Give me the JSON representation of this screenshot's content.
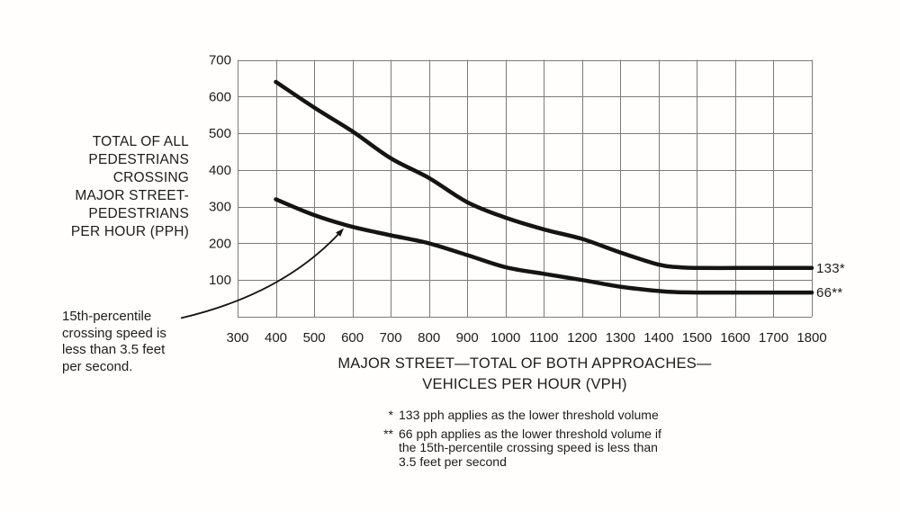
{
  "colors": {
    "background": "#fffefc",
    "grid": "#7b7b7b",
    "curve": "#141414",
    "text": "#1c1c1c"
  },
  "y_axis_title_lines": [
    "TOTAL OF ALL",
    "PEDESTRIANS",
    "CROSSING",
    "MAJOR STREET-",
    "PEDESTRIANS",
    "PER HOUR (PPH)"
  ],
  "x_axis_title_lines": [
    "MAJOR STREET—TOTAL OF BOTH APPROACHES—",
    "VEHICLES PER HOUR (VPH)"
  ],
  "annotation_lines": [
    "15th-percentile",
    "crossing speed is",
    "less than 3.5 feet",
    "per second."
  ],
  "curve_labels": {
    "upper": "133*",
    "lower": "66**"
  },
  "footnotes": [
    {
      "marker": "*",
      "lines": [
        "133 pph applies as the lower threshold volume"
      ]
    },
    {
      "marker": "**",
      "lines": [
        "66 pph applies as the lower threshold volume if",
        "the 15th-percentile crossing speed is less than",
        "3.5 feet per second"
      ]
    }
  ],
  "chart_data": {
    "type": "line",
    "title": "",
    "xlabel": "MAJOR STREET—TOTAL OF BOTH APPROACHES—VEHICLES PER HOUR (VPH)",
    "ylabel": "TOTAL OF ALL PEDESTRIANS CROSSING MAJOR STREET-PEDESTRIANS PER HOUR (PPH)",
    "xlim": [
      300,
      1800
    ],
    "ylim": [
      0,
      700
    ],
    "x_ticks": [
      300,
      400,
      500,
      600,
      700,
      800,
      900,
      1000,
      1100,
      1200,
      1300,
      1400,
      1500,
      1600,
      1700,
      1800
    ],
    "y_ticks": [
      100,
      200,
      300,
      400,
      500,
      600,
      700
    ],
    "y_grid_step": 100,
    "grid": true,
    "legend_position": "none",
    "series": [
      {
        "name": "curve-133 (lower threshold 133 pph)",
        "end_label": "133*",
        "points": [
          [
            400,
            640
          ],
          [
            500,
            570
          ],
          [
            600,
            505
          ],
          [
            700,
            432
          ],
          [
            800,
            378
          ],
          [
            900,
            312
          ],
          [
            1000,
            270
          ],
          [
            1100,
            238
          ],
          [
            1200,
            212
          ],
          [
            1300,
            175
          ],
          [
            1400,
            142
          ],
          [
            1450,
            135
          ],
          [
            1500,
            133
          ],
          [
            1600,
            133
          ],
          [
            1700,
            133
          ],
          [
            1800,
            133
          ]
        ]
      },
      {
        "name": "curve-66 (lower threshold 66 pph, 15th-percentile crossing speed < 3.5 ft/s)",
        "end_label": "66**",
        "points": [
          [
            400,
            320
          ],
          [
            500,
            277
          ],
          [
            600,
            245
          ],
          [
            700,
            222
          ],
          [
            800,
            200
          ],
          [
            900,
            168
          ],
          [
            1000,
            135
          ],
          [
            1100,
            117
          ],
          [
            1200,
            100
          ],
          [
            1300,
            82
          ],
          [
            1400,
            70
          ],
          [
            1450,
            67
          ],
          [
            1500,
            66
          ],
          [
            1600,
            66
          ],
          [
            1700,
            66
          ],
          [
            1800,
            66
          ]
        ]
      }
    ]
  }
}
